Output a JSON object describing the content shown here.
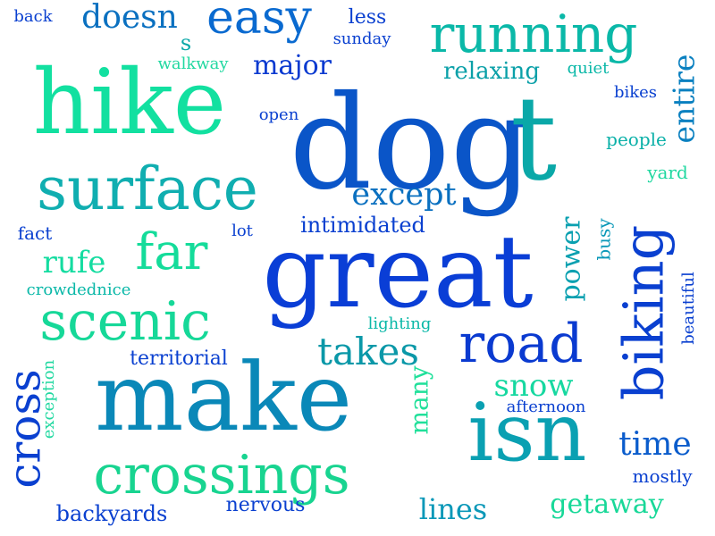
{
  "words": [
    {
      "text": "dog",
      "color": "#0a55c8"
    },
    {
      "text": "great",
      "color": "#0a3ed6"
    },
    {
      "text": "make",
      "color": "#0a88b8"
    },
    {
      "text": "isn",
      "color": "#0aa0b2"
    },
    {
      "text": "hike",
      "color": "#12e0a0"
    },
    {
      "text": "surface",
      "color": "#10aeb0"
    },
    {
      "text": "running",
      "color": "#0ab8a8"
    },
    {
      "text": "biking",
      "color": "#0a40d0"
    },
    {
      "text": "t",
      "color": "#0aa8a8"
    },
    {
      "text": "crossings",
      "color": "#18d490"
    },
    {
      "text": "scenic",
      "color": "#16d898"
    },
    {
      "text": "road",
      "color": "#0a3ad0"
    },
    {
      "text": "easy",
      "color": "#0a6ad0"
    },
    {
      "text": "far",
      "color": "#14dc9a"
    },
    {
      "text": "cross",
      "color": "#0a40d0"
    },
    {
      "text": "except",
      "color": "#0a70c0"
    },
    {
      "text": "takes",
      "color": "#0a98a8"
    },
    {
      "text": "snow",
      "color": "#16d8a0"
    },
    {
      "text": "time",
      "color": "#0a5ccc"
    },
    {
      "text": "entire",
      "color": "#0a80c0"
    },
    {
      "text": "doesn",
      "color": "#0a70c0"
    },
    {
      "text": "major",
      "color": "#0a3ad0"
    },
    {
      "text": "relaxing",
      "color": "#0aa0a8"
    },
    {
      "text": "rufe",
      "color": "#14dca0"
    },
    {
      "text": "power",
      "color": "#0aa0b0"
    },
    {
      "text": "many",
      "color": "#20e09a"
    },
    {
      "text": "lines",
      "color": "#0a98b8"
    },
    {
      "text": "getaway",
      "color": "#18d898"
    },
    {
      "text": "intimidated",
      "color": "#0a40d0"
    },
    {
      "text": "territorial",
      "color": "#0a40d0"
    },
    {
      "text": "backyards",
      "color": "#0a40d0"
    },
    {
      "text": "nervous",
      "color": "#0a40d0"
    },
    {
      "text": "mostly",
      "color": "#0a40d0"
    },
    {
      "text": "afternoon",
      "color": "#0a40d0"
    },
    {
      "text": "beautiful",
      "color": "#0a40d0"
    },
    {
      "text": "busy",
      "color": "#0a98b8"
    },
    {
      "text": "people",
      "color": "#0ab0a8"
    },
    {
      "text": "yard",
      "color": "#20d8a0"
    },
    {
      "text": "bikes",
      "color": "#0a40d0"
    },
    {
      "text": "quiet",
      "color": "#0ab8a8"
    },
    {
      "text": "less",
      "color": "#0a40d0"
    },
    {
      "text": "sunday",
      "color": "#0a40d0"
    },
    {
      "text": "s",
      "color": "#0aa8a8"
    },
    {
      "text": "back",
      "color": "#0a40d0"
    },
    {
      "text": "walkway",
      "color": "#20d8a0"
    },
    {
      "text": "open",
      "color": "#0a40d0"
    },
    {
      "text": "fact",
      "color": "#0a40d0"
    },
    {
      "text": "lot",
      "color": "#0a40d0"
    },
    {
      "text": "crowdednice",
      "color": "#0ab8a8"
    },
    {
      "text": "lighting",
      "color": "#0ab8a8"
    },
    {
      "text": "exception",
      "color": "#20d8a0"
    }
  ]
}
